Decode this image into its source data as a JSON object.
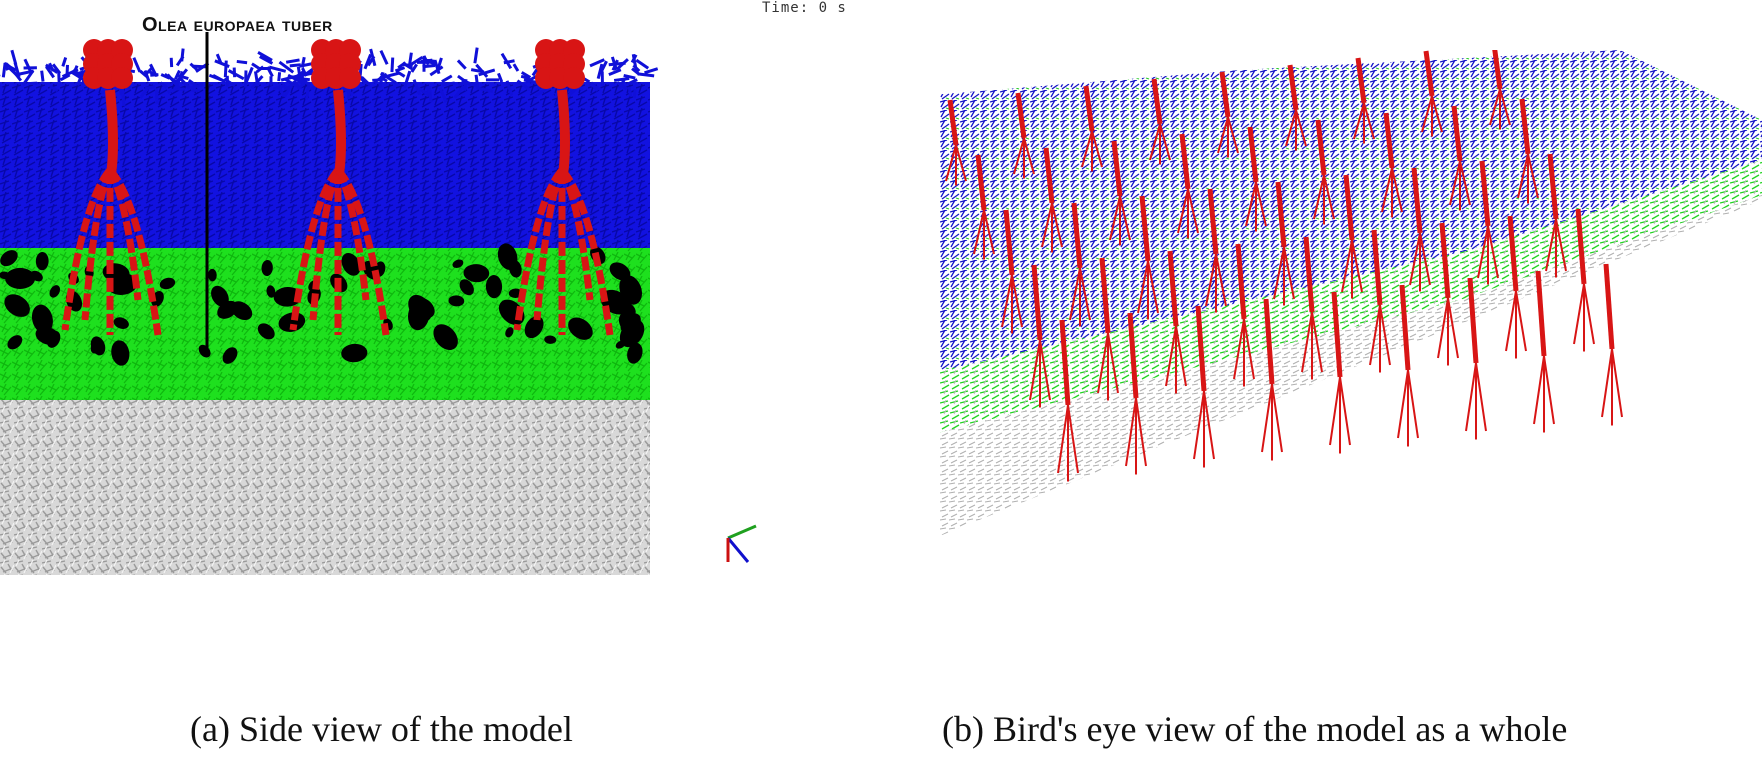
{
  "panel_a": {
    "annotation": "Olea europaea tuber",
    "time_readout": "Time: 0 s",
    "caption": "(a) Side view of the model"
  },
  "panel_b": {
    "caption": "(b) Bird's eye view of the model as a whole"
  },
  "colors": {
    "root": "#d81515",
    "top_layer": "#1010d8",
    "middle_layer": "#18e018",
    "bottom_layer": "#c8c8c8",
    "void": "#000000",
    "background": "#ffffff"
  }
}
